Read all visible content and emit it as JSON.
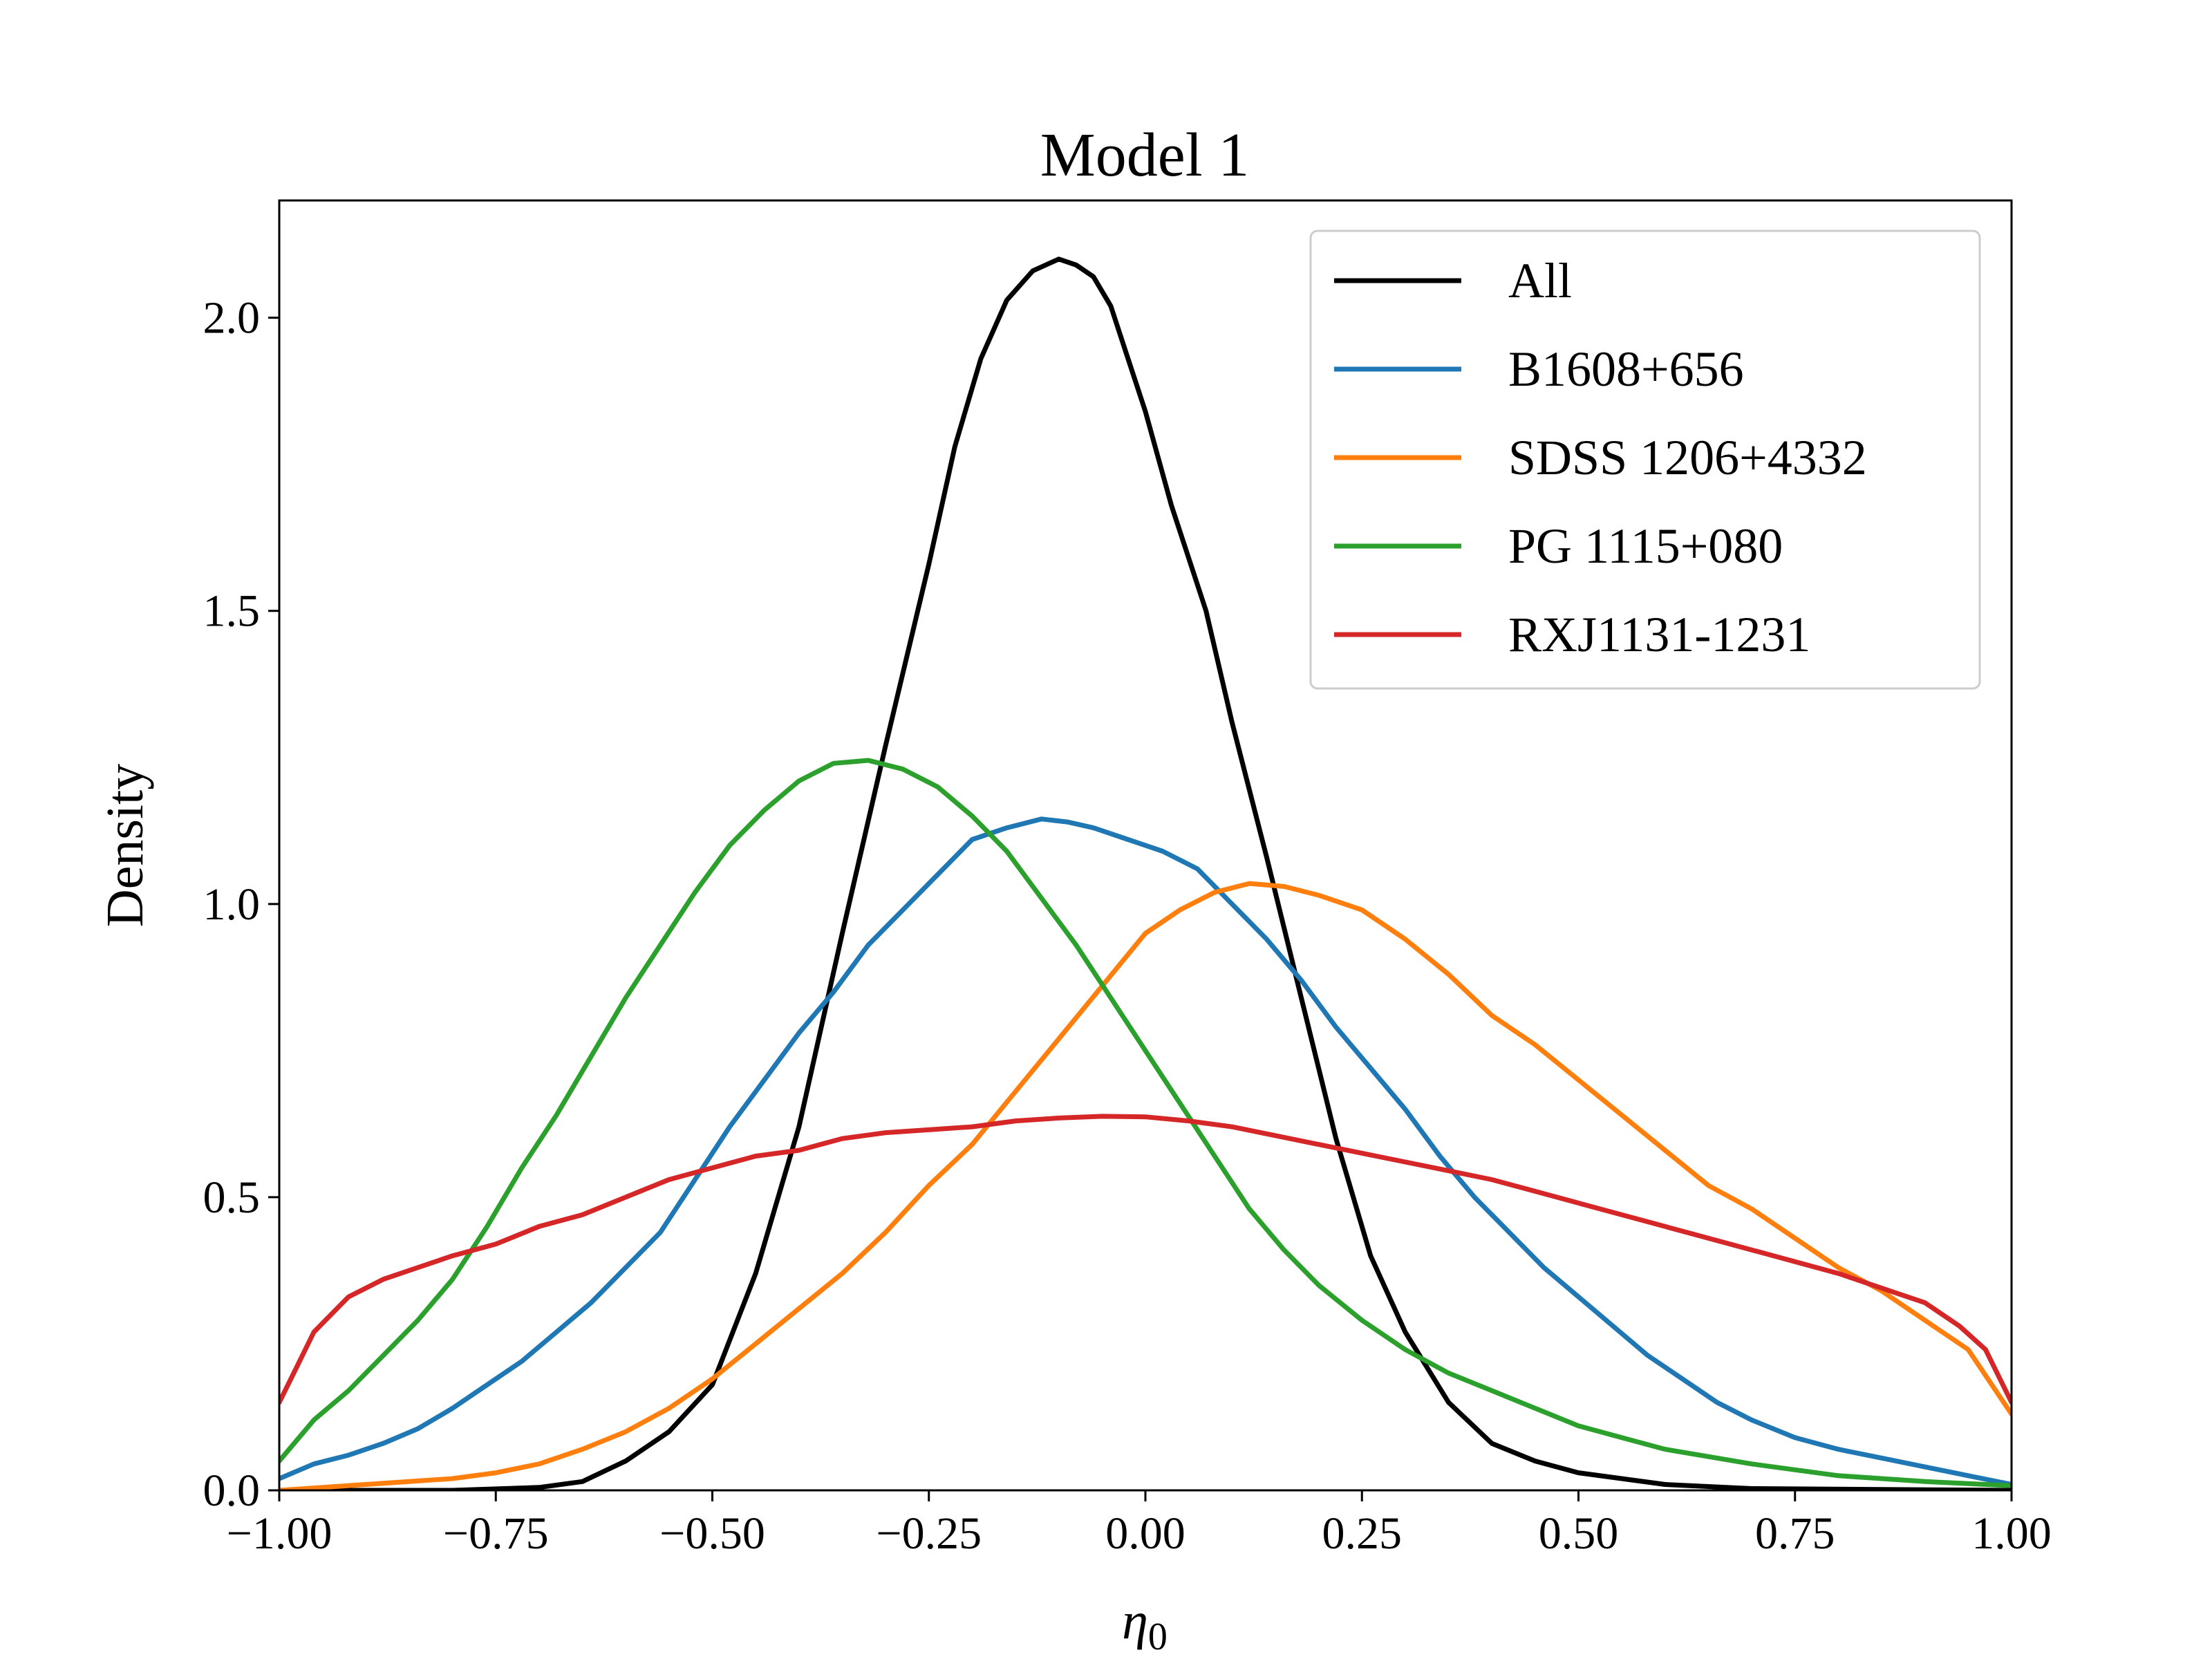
{
  "chart_data": {
    "type": "line",
    "title": "Model 1",
    "xlabel": "η",
    "xlabel_subscript": "0",
    "ylabel": "Density",
    "xlim": [
      -1.0,
      1.0
    ],
    "ylim": [
      0.0,
      2.2
    ],
    "xticks": [
      -1.0,
      -0.75,
      -0.5,
      -0.25,
      0.0,
      0.25,
      0.5,
      0.75,
      1.0
    ],
    "xtick_labels": [
      "−1.00",
      "−0.75",
      "−0.50",
      "−0.25",
      "0.00",
      "0.25",
      "0.50",
      "0.75",
      "1.00"
    ],
    "yticks": [
      0.0,
      0.5,
      1.0,
      1.5,
      2.0
    ],
    "ytick_labels": [
      "0.0",
      "0.5",
      "1.0",
      "1.5",
      "2.0"
    ],
    "grid": false,
    "legend_position": "top-right",
    "series": [
      {
        "name": "All",
        "color": "#000000",
        "x": [
          -1.0,
          -0.8,
          -0.7,
          -0.65,
          -0.6,
          -0.55,
          -0.5,
          -0.45,
          -0.4,
          -0.35,
          -0.3,
          -0.25,
          -0.22,
          -0.19,
          -0.16,
          -0.13,
          -0.1,
          -0.08,
          -0.06,
          -0.04,
          -0.02,
          0.0,
          0.03,
          0.07,
          0.1,
          0.14,
          0.18,
          0.22,
          0.26,
          0.3,
          0.35,
          0.4,
          0.45,
          0.5,
          0.6,
          0.7,
          1.0
        ],
        "y": [
          0.0,
          0.0,
          0.005,
          0.015,
          0.05,
          0.1,
          0.18,
          0.37,
          0.62,
          0.95,
          1.27,
          1.58,
          1.78,
          1.93,
          2.03,
          2.08,
          2.1,
          2.09,
          2.07,
          2.02,
          1.93,
          1.84,
          1.68,
          1.5,
          1.31,
          1.08,
          0.84,
          0.6,
          0.4,
          0.27,
          0.15,
          0.08,
          0.05,
          0.03,
          0.01,
          0.003,
          0.0
        ]
      },
      {
        "name": "B1608+656",
        "color": "#1f77b4",
        "x": [
          -1.0,
          -0.96,
          -0.92,
          -0.88,
          -0.84,
          -0.8,
          -0.76,
          -0.72,
          -0.68,
          -0.64,
          -0.6,
          -0.56,
          -0.52,
          -0.48,
          -0.44,
          -0.4,
          -0.36,
          -0.32,
          -0.28,
          -0.24,
          -0.2,
          -0.16,
          -0.12,
          -0.09,
          -0.06,
          -0.02,
          0.02,
          0.06,
          0.1,
          0.14,
          0.18,
          0.22,
          0.26,
          0.3,
          0.34,
          0.38,
          0.42,
          0.46,
          0.5,
          0.54,
          0.58,
          0.62,
          0.66,
          0.7,
          0.75,
          0.8,
          0.85,
          0.9,
          0.95,
          1.0
        ],
        "y": [
          0.02,
          0.045,
          0.06,
          0.08,
          0.105,
          0.14,
          0.18,
          0.22,
          0.27,
          0.32,
          0.38,
          0.44,
          0.53,
          0.62,
          0.7,
          0.78,
          0.85,
          0.93,
          0.99,
          1.05,
          1.11,
          1.13,
          1.145,
          1.14,
          1.13,
          1.11,
          1.09,
          1.06,
          1.0,
          0.94,
          0.87,
          0.79,
          0.72,
          0.65,
          0.57,
          0.5,
          0.44,
          0.38,
          0.33,
          0.28,
          0.23,
          0.19,
          0.15,
          0.12,
          0.09,
          0.07,
          0.055,
          0.04,
          0.025,
          0.01
        ]
      },
      {
        "name": "SDSS 1206+4332",
        "color": "#ff7f0e",
        "x": [
          -1.0,
          -0.9,
          -0.8,
          -0.75,
          -0.7,
          -0.65,
          -0.6,
          -0.55,
          -0.5,
          -0.45,
          -0.4,
          -0.35,
          -0.3,
          -0.25,
          -0.2,
          -0.15,
          -0.1,
          -0.05,
          0.0,
          0.04,
          0.08,
          0.12,
          0.16,
          0.2,
          0.25,
          0.3,
          0.35,
          0.4,
          0.45,
          0.5,
          0.55,
          0.6,
          0.65,
          0.7,
          0.75,
          0.8,
          0.85,
          0.9,
          0.95,
          1.0
        ],
        "y": [
          0.0,
          0.01,
          0.02,
          0.03,
          0.045,
          0.07,
          0.1,
          0.14,
          0.19,
          0.25,
          0.31,
          0.37,
          0.44,
          0.52,
          0.59,
          0.68,
          0.77,
          0.86,
          0.95,
          0.99,
          1.02,
          1.035,
          1.03,
          1.015,
          0.99,
          0.94,
          0.88,
          0.81,
          0.76,
          0.7,
          0.64,
          0.58,
          0.52,
          0.48,
          0.43,
          0.38,
          0.34,
          0.29,
          0.24,
          0.13
        ]
      },
      {
        "name": "PG 1115+080",
        "color": "#2ca02c",
        "x": [
          -1.0,
          -0.96,
          -0.92,
          -0.88,
          -0.84,
          -0.8,
          -0.76,
          -0.72,
          -0.68,
          -0.64,
          -0.6,
          -0.56,
          -0.52,
          -0.48,
          -0.44,
          -0.4,
          -0.36,
          -0.32,
          -0.28,
          -0.24,
          -0.2,
          -0.16,
          -0.12,
          -0.08,
          -0.04,
          0.0,
          0.04,
          0.08,
          0.12,
          0.16,
          0.2,
          0.25,
          0.3,
          0.35,
          0.4,
          0.45,
          0.5,
          0.55,
          0.6,
          0.7,
          0.8,
          0.9,
          1.0
        ],
        "y": [
          0.05,
          0.12,
          0.17,
          0.23,
          0.29,
          0.36,
          0.45,
          0.55,
          0.64,
          0.74,
          0.84,
          0.93,
          1.02,
          1.1,
          1.16,
          1.21,
          1.24,
          1.245,
          1.23,
          1.2,
          1.15,
          1.09,
          1.01,
          0.93,
          0.84,
          0.75,
          0.66,
          0.57,
          0.48,
          0.41,
          0.35,
          0.29,
          0.24,
          0.2,
          0.17,
          0.14,
          0.11,
          0.09,
          0.07,
          0.045,
          0.025,
          0.015,
          0.008
        ]
      },
      {
        "name": "RXJ1131-1231",
        "color": "#d62728",
        "x": [
          -1.0,
          -0.98,
          -0.96,
          -0.92,
          -0.88,
          -0.84,
          -0.8,
          -0.75,
          -0.7,
          -0.65,
          -0.6,
          -0.55,
          -0.5,
          -0.45,
          -0.4,
          -0.35,
          -0.3,
          -0.25,
          -0.2,
          -0.15,
          -0.1,
          -0.05,
          0.0,
          0.05,
          0.1,
          0.15,
          0.2,
          0.25,
          0.3,
          0.35,
          0.4,
          0.45,
          0.5,
          0.55,
          0.6,
          0.65,
          0.7,
          0.75,
          0.8,
          0.85,
          0.9,
          0.94,
          0.97,
          1.0
        ],
        "y": [
          0.15,
          0.21,
          0.27,
          0.33,
          0.36,
          0.38,
          0.4,
          0.42,
          0.45,
          0.47,
          0.5,
          0.53,
          0.55,
          0.57,
          0.58,
          0.6,
          0.61,
          0.615,
          0.62,
          0.63,
          0.635,
          0.638,
          0.637,
          0.63,
          0.62,
          0.605,
          0.59,
          0.575,
          0.56,
          0.545,
          0.53,
          0.51,
          0.49,
          0.47,
          0.45,
          0.43,
          0.41,
          0.39,
          0.37,
          0.345,
          0.32,
          0.28,
          0.24,
          0.15
        ]
      }
    ]
  }
}
